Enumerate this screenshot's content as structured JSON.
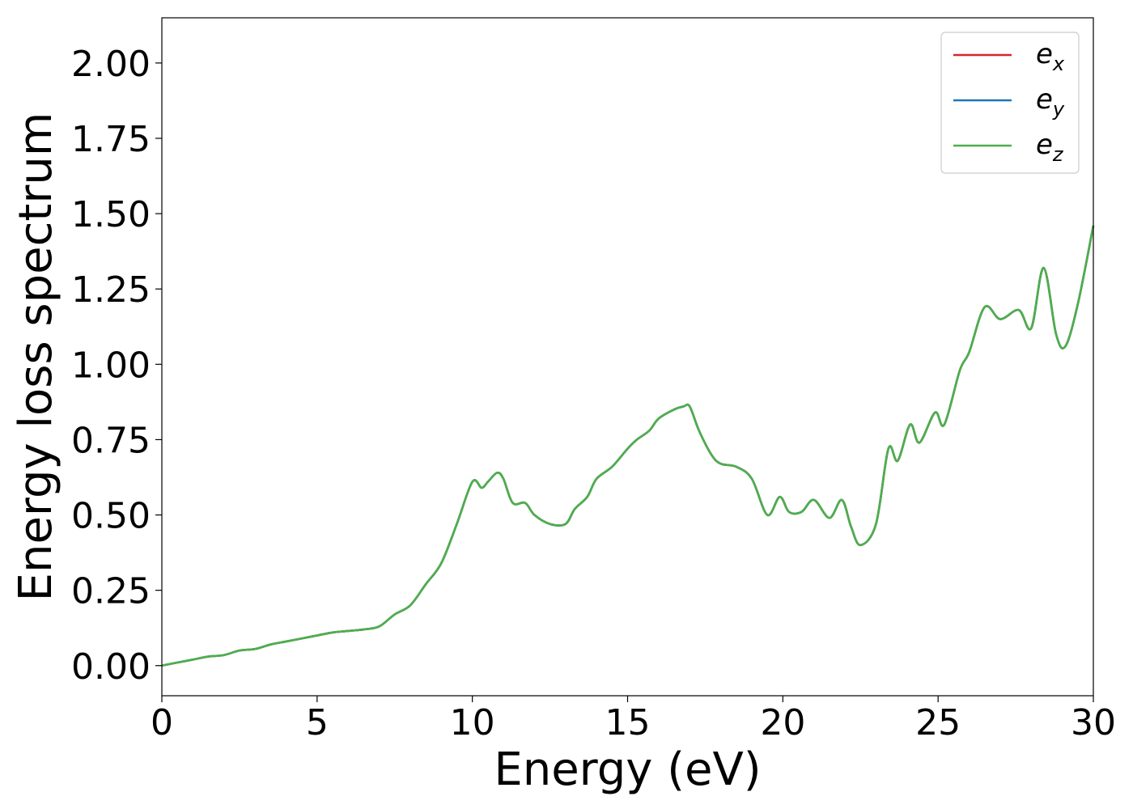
{
  "chart_data": {
    "type": "line",
    "title": "",
    "xlabel": "Energy (eV)",
    "ylabel": "Energy loss spectrum",
    "xlim": [
      0,
      30
    ],
    "ylim": [
      -0.1,
      2.15
    ],
    "xticks": [
      0,
      5,
      10,
      15,
      20,
      25,
      30
    ],
    "xtick_labels": [
      "0",
      "5",
      "10",
      "15",
      "20",
      "25",
      "30"
    ],
    "yticks": [
      0,
      0.25,
      0.5,
      0.75,
      1.0,
      1.25,
      1.5,
      1.75,
      2.0
    ],
    "ytick_labels": [
      "0.00",
      "0.25",
      "0.50",
      "0.75",
      "1.00",
      "1.25",
      "1.50",
      "1.75",
      "2.00"
    ],
    "grid": false,
    "legend_position": "top-right",
    "x": [
      0,
      0.5,
      1,
      1.5,
      2,
      2.5,
      3,
      3.5,
      4,
      4.5,
      5,
      5.5,
      6,
      6.5,
      7,
      7.5,
      8,
      8.5,
      9,
      9.5,
      10,
      10.3,
      10.5,
      10.8,
      11,
      11.3,
      11.7,
      12,
      12.5,
      13,
      13.3,
      13.7,
      14,
      14.5,
      15,
      15.3,
      15.7,
      16,
      16.5,
      16.8,
      17,
      17.3,
      17.7,
      18,
      18.5,
      19,
      19.5,
      19.9,
      20.2,
      20.6,
      21,
      21.5,
      21.9,
      22.2,
      22.5,
      23,
      23.4,
      23.7,
      24.1,
      24.4,
      24.9,
      25.2,
      25.7,
      26,
      26.5,
      27,
      27.6,
      28,
      28.4,
      28.8,
      29.1,
      29.5,
      30
    ],
    "series": [
      {
        "name": "e_x",
        "label_main": "e",
        "label_sub": "x",
        "color": "#d62728",
        "values": [
          0.0,
          0.01,
          0.02,
          0.03,
          0.035,
          0.05,
          0.055,
          0.07,
          0.08,
          0.09,
          0.1,
          0.11,
          0.115,
          0.12,
          0.13,
          0.17,
          0.2,
          0.27,
          0.34,
          0.47,
          0.61,
          0.59,
          0.61,
          0.64,
          0.62,
          0.54,
          0.54,
          0.5,
          0.47,
          0.47,
          0.52,
          0.56,
          0.62,
          0.66,
          0.72,
          0.75,
          0.78,
          0.82,
          0.85,
          0.86,
          0.86,
          0.78,
          0.7,
          0.67,
          0.66,
          0.62,
          0.5,
          0.56,
          0.51,
          0.51,
          0.55,
          0.49,
          0.55,
          0.46,
          0.4,
          0.47,
          0.72,
          0.68,
          0.8,
          0.74,
          0.84,
          0.8,
          0.98,
          1.04,
          1.19,
          1.15,
          1.18,
          1.12,
          1.32,
          1.1,
          1.06,
          1.2,
          1.46
        ]
      },
      {
        "name": "e_y",
        "label_main": "e",
        "label_sub": "y",
        "color": "#1f77b4",
        "values": [
          0.0,
          0.01,
          0.02,
          0.03,
          0.035,
          0.05,
          0.055,
          0.07,
          0.08,
          0.09,
          0.1,
          0.11,
          0.115,
          0.12,
          0.13,
          0.17,
          0.2,
          0.27,
          0.34,
          0.47,
          0.61,
          0.59,
          0.61,
          0.64,
          0.62,
          0.54,
          0.54,
          0.5,
          0.47,
          0.47,
          0.52,
          0.56,
          0.62,
          0.66,
          0.72,
          0.75,
          0.78,
          0.82,
          0.85,
          0.86,
          0.86,
          0.78,
          0.7,
          0.67,
          0.66,
          0.62,
          0.5,
          0.56,
          0.51,
          0.51,
          0.55,
          0.49,
          0.55,
          0.46,
          0.4,
          0.47,
          0.72,
          0.68,
          0.8,
          0.74,
          0.84,
          0.8,
          0.98,
          1.04,
          1.19,
          1.15,
          1.18,
          1.12,
          1.32,
          1.1,
          1.06,
          1.2,
          1.46
        ]
      },
      {
        "name": "e_z",
        "label_main": "e",
        "label_sub": "z",
        "color": "#4daf4a",
        "values": [
          0.0,
          0.01,
          0.02,
          0.03,
          0.035,
          0.05,
          0.055,
          0.07,
          0.08,
          0.09,
          0.1,
          0.11,
          0.115,
          0.12,
          0.13,
          0.17,
          0.2,
          0.27,
          0.34,
          0.47,
          0.61,
          0.59,
          0.61,
          0.64,
          0.62,
          0.54,
          0.54,
          0.5,
          0.47,
          0.47,
          0.52,
          0.56,
          0.62,
          0.66,
          0.72,
          0.75,
          0.78,
          0.82,
          0.85,
          0.86,
          0.86,
          0.78,
          0.7,
          0.67,
          0.66,
          0.62,
          0.5,
          0.56,
          0.51,
          0.51,
          0.55,
          0.49,
          0.55,
          0.46,
          0.4,
          0.47,
          0.72,
          0.68,
          0.8,
          0.74,
          0.84,
          0.8,
          0.98,
          1.04,
          1.19,
          1.15,
          1.18,
          1.12,
          1.32,
          1.1,
          1.06,
          1.2,
          1.46
        ]
      }
    ]
  }
}
